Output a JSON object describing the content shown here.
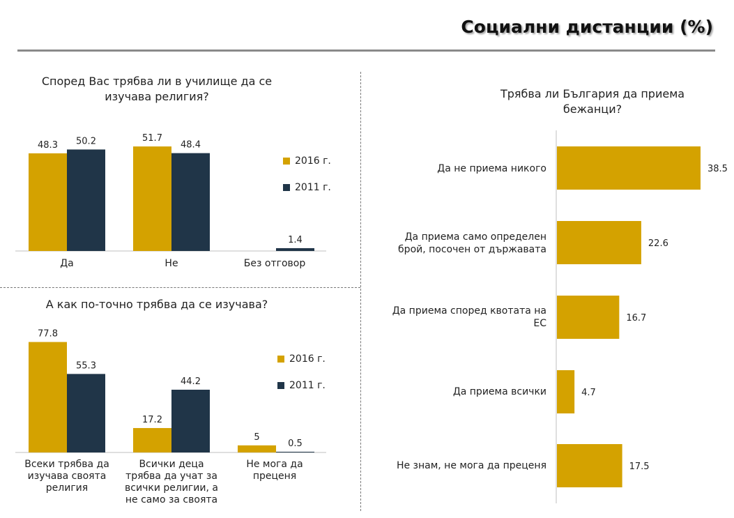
{
  "page": {
    "title": "Социални дистанции (%)"
  },
  "colors": {
    "y2016": "#d4a200",
    "y2011": "#203548",
    "refugees": "#d4a200"
  },
  "chart_data": [
    {
      "id": "religion-in-school",
      "type": "bar",
      "title": "Според Вас трябва ли в училище да се изучава религия?",
      "categories": [
        "Да",
        "Не",
        "Без отговор"
      ],
      "series": [
        {
          "name": "2016 г.",
          "values": [
            48.3,
            51.7,
            null
          ]
        },
        {
          "name": "2011 г.",
          "values": [
            50.2,
            48.4,
            1.4
          ]
        }
      ],
      "value_labels": [
        [
          "48.3",
          "51.7",
          ""
        ],
        [
          "50.2",
          "48.4",
          "1.4"
        ]
      ],
      "ylim": [
        0,
        60
      ],
      "grid": false,
      "legend": "right"
    },
    {
      "id": "how-to-study",
      "type": "bar",
      "title": "А как по-точно трябва да се изучава?",
      "categories": [
        "Всеки трябва да изучава своята религия",
        "Всички деца трябва да учат за всички религии, а не само за своята",
        "Не мога да преценя"
      ],
      "series": [
        {
          "name": "2016 г.",
          "values": [
            77.8,
            17.2,
            5
          ]
        },
        {
          "name": "2011 г.",
          "values": [
            55.3,
            44.2,
            0.5
          ]
        }
      ],
      "value_labels": [
        [
          "77.8",
          "17.2",
          "5"
        ],
        [
          "55.3",
          "44.2",
          "0.5"
        ]
      ],
      "ylim": [
        0,
        82
      ],
      "grid": false,
      "legend": "right"
    },
    {
      "id": "refugees",
      "type": "bar",
      "orientation": "horizontal",
      "title": "Трябва ли България да приема бежанци?",
      "categories": [
        "Да не приема никого",
        "Да приема само определен брой, посочен от държавата",
        "Да приема според квотата на ЕС",
        "Да приема всички",
        "Не знам, не мога да преценя"
      ],
      "values": [
        38.5,
        22.6,
        16.7,
        4.7,
        17.5
      ],
      "value_labels": [
        "38.5",
        "22.6",
        "16.7",
        "4.7",
        "17.5"
      ],
      "xlim": [
        0,
        40
      ],
      "grid": false
    }
  ]
}
